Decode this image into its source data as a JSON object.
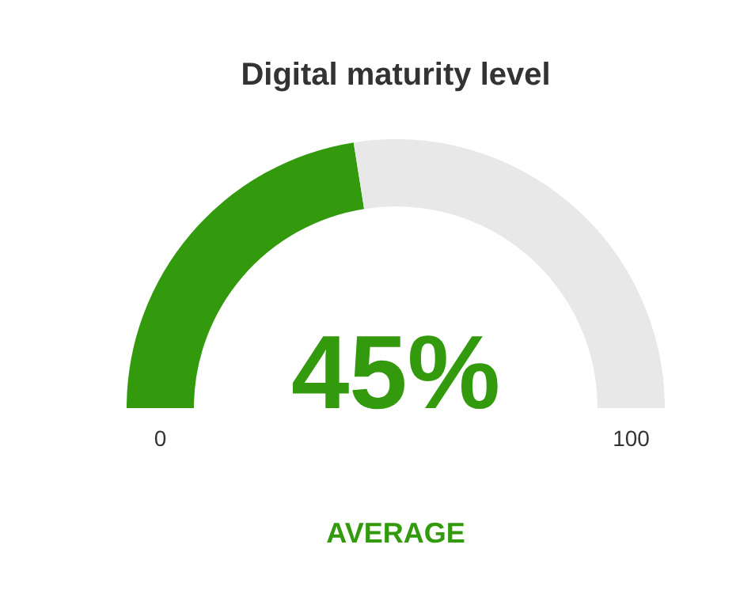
{
  "chart_data": {
    "type": "donut",
    "title": "Digital maturity level",
    "categories": [
      null,
      null
    ],
    "values": [
      45,
      55
    ],
    "colors": [
      "#339a0e",
      "#e8e8e8"
    ],
    "value_labels": [
      "45%",
      null
    ],
    "annotations": [
      "0",
      "100",
      "AVERAGE"
    ]
  }
}
